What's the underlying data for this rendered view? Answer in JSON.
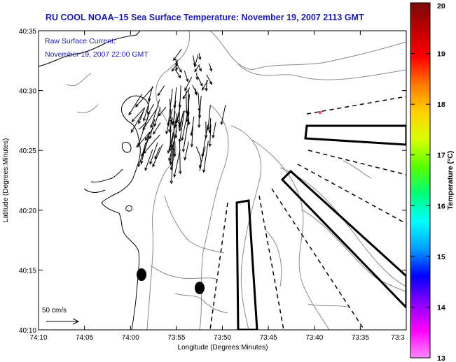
{
  "title": "RU COOL  NOAA–15  Sea Surface Temperature:  November 19, 2007 2113 GMT",
  "annotation": {
    "line1": "Raw Surface Current:",
    "line2": "November 19, 2007 22:00 GMT"
  },
  "scale_label": "50 cm/s",
  "x_axis": {
    "label": "Longitude (Degrees:Minutes)",
    "ticks": [
      "74:10",
      "74:05",
      "74:00",
      "73:55",
      "73:50",
      "73:45",
      "73:40",
      "73:35",
      "73:3"
    ]
  },
  "y_axis": {
    "label": "Latitude (Degrees:Minutes)",
    "ticks": [
      "40:35",
      "40:30",
      "40:25",
      "40:20",
      "40:15",
      "40:10"
    ]
  },
  "colorbar": {
    "label": "Temperature (°C)",
    "ticks": [
      "20",
      "19",
      "18",
      "17",
      "16",
      "15",
      "14",
      "13"
    ],
    "colors": [
      "#7a0a0a",
      "#c00000",
      "#ff0000",
      "#ff7a00",
      "#ffd200",
      "#d8ff00",
      "#5aff00",
      "#00ff7a",
      "#00ffff",
      "#00a0ff",
      "#0000ff",
      "#8a00ff",
      "#ff00ff",
      "#ff88ff"
    ]
  },
  "colors": {
    "title_text": "#1a1aa6",
    "coastline": "#000000",
    "bathymetry": "#808080",
    "vectors": "#000000"
  },
  "markers": {
    "stations": 2,
    "sst_pixel_color": "#ff3fa0"
  }
}
